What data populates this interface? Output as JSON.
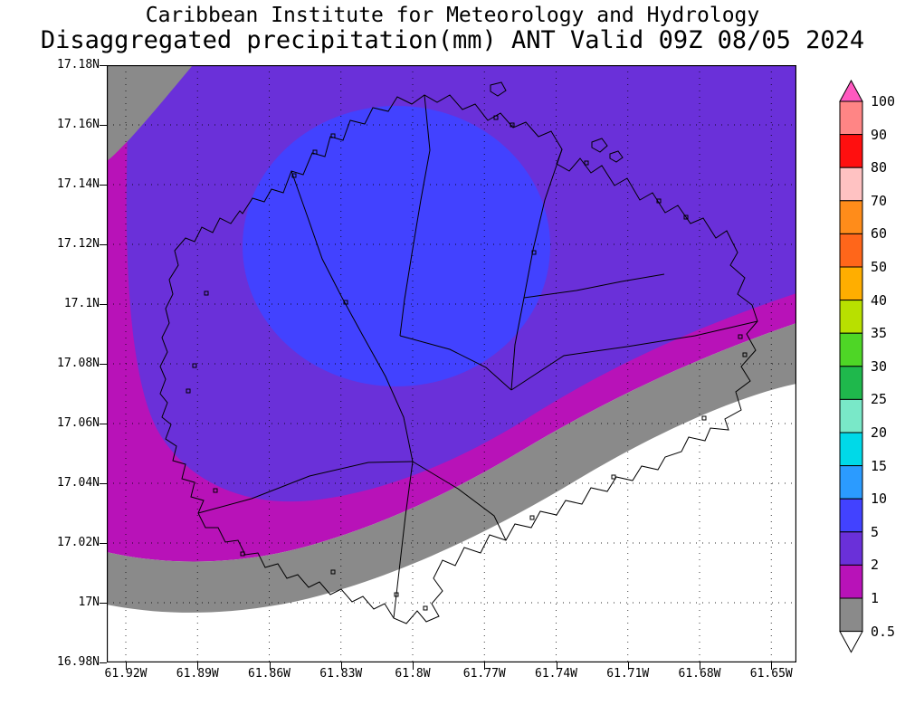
{
  "header": {
    "line1": "Caribbean Institute for Meteorology and Hydrology",
    "line2": "Disaggregated precipitation(mm) ANT Valid 09Z 08/05 2024"
  },
  "chart_data": {
    "type": "heatmap",
    "title": "Disaggregated precipitation(mm) ANT Valid 09Z 08/05 2024",
    "institution": "Caribbean Institute for Meteorology and Hydrology",
    "variable": "Disaggregated precipitation",
    "units": "mm",
    "region_code": "ANT",
    "valid_time": "09Z 08/05 2024",
    "grid": true,
    "legend_position": "right",
    "y_axis": {
      "ticks": [
        "17.18N",
        "17.16N",
        "17.14N",
        "17.12N",
        "17.1N",
        "17.08N",
        "17.06N",
        "17.04N",
        "17.02N",
        "17N",
        "16.98N"
      ],
      "range_deg_north": [
        16.98,
        17.18
      ]
    },
    "x_axis": {
      "ticks": [
        "61.92W",
        "61.89W",
        "61.86W",
        "61.83W",
        "61.8W",
        "61.77W",
        "61.74W",
        "61.71W",
        "61.68W",
        "61.65W"
      ],
      "range_deg_west": [
        61.92,
        61.65
      ]
    },
    "colorbar": {
      "levels": [
        "100",
        "90",
        "80",
        "70",
        "60",
        "50",
        "40",
        "35",
        "30",
        "25",
        "20",
        "15",
        "10",
        "5",
        "2",
        "1",
        "0.5"
      ],
      "segment_colors_top_to_bottom": [
        "#ff8585",
        "#ff0f0f",
        "#ffc2c2",
        "#ff8c1a",
        "#ff661a",
        "#ffae00",
        "#b8e000",
        "#4ed626",
        "#1fb84c",
        "#79e8c8",
        "#00d9e8",
        "#2b9bff",
        "#4242ff",
        "#6a30d9",
        "#b812b8",
        "#8a8a8a"
      ],
      "arrow_top_color": "#ff59c0",
      "arrow_bottom_color": "#ffffff"
    },
    "contour_fills": [
      {
        "level": "0.5-1 mm",
        "color": "#8a8a8a",
        "description": "diagonal band from east edge to southwest, plus northwest corner patch"
      },
      {
        "level": "1-2 mm",
        "color": "#b812b8",
        "description": "broad magenta area over west and central map"
      },
      {
        "level": "2-5 mm",
        "color": "#6a30d9",
        "description": "large violet region covering north, center and east"
      },
      {
        "level": "5-10 mm",
        "color": "#4242ff",
        "description": "blue oval maximum over north-central Antigua"
      }
    ]
  }
}
